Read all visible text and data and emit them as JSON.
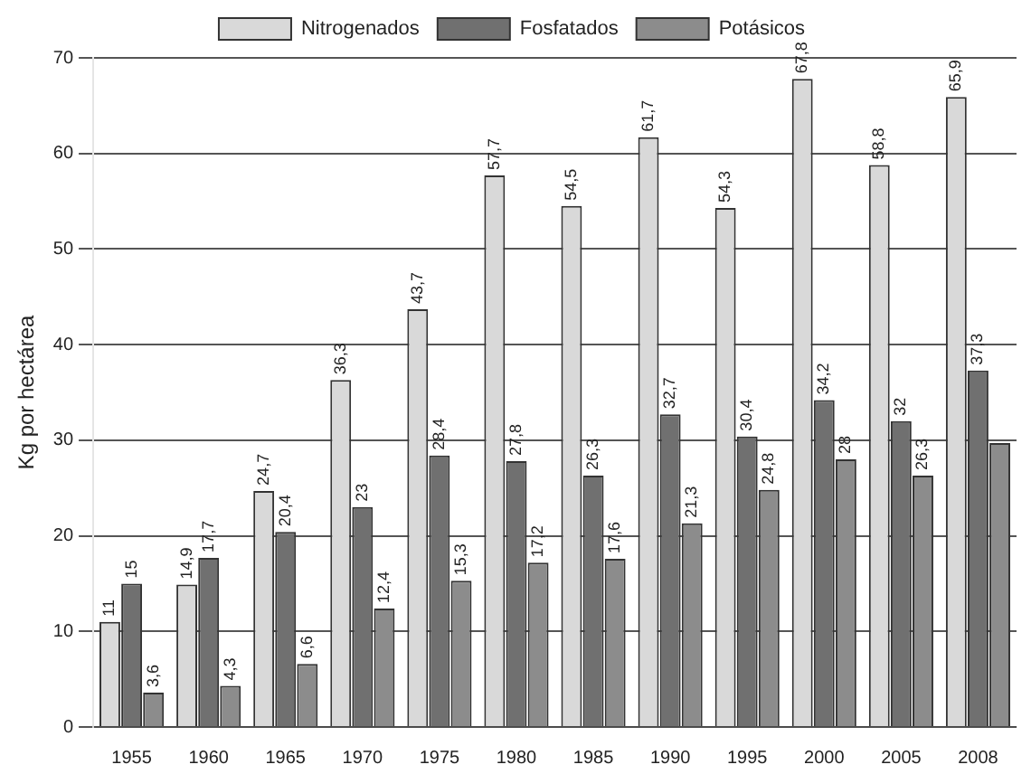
{
  "chart_data": {
    "type": "bar",
    "ylabel": "Kg por hectárea",
    "categories": [
      "1955",
      "1960",
      "1965",
      "1970",
      "1975",
      "1980",
      "1985",
      "1990",
      "1995",
      "2000",
      "2005",
      "2008"
    ],
    "series": [
      {
        "name": "Nitrogenados",
        "color": "#d9d9d9",
        "values": [
          11,
          14.9,
          24.7,
          36.3,
          43.7,
          57.7,
          54.5,
          61.7,
          54.3,
          67.8,
          58.8,
          65.9
        ],
        "value_labels": [
          "11",
          "14,9",
          "24,7",
          "36,3",
          "43,7",
          "57,7",
          "54,5",
          "61,7",
          "54,3",
          "67,8",
          "58,8",
          "65,9"
        ]
      },
      {
        "name": "Fosfatados",
        "color": "#707070",
        "values": [
          15,
          17.7,
          20.4,
          23,
          28.4,
          27.8,
          26.3,
          32.7,
          30.4,
          34.2,
          32,
          37.3
        ],
        "value_labels": [
          "15",
          "17,7",
          "20,4",
          "23",
          "28,4",
          "27,8",
          "26,3",
          "32,7",
          "30,4",
          "34,2",
          "32",
          "37,3"
        ]
      },
      {
        "name": "Potásicos",
        "color": "#8c8c8c",
        "values": [
          3.6,
          4.3,
          6.6,
          12.4,
          15.3,
          17.2,
          17.6,
          21.3,
          24.8,
          28,
          26.3,
          29.7
        ],
        "value_labels": [
          "3,6",
          "4,3",
          "6,6",
          "12,4",
          "15,3",
          "17,2",
          "17,6",
          "21,3",
          "24,8",
          "28",
          "26,3",
          null
        ]
      }
    ],
    "ylim": [
      0,
      70
    ],
    "yticks": [
      0,
      10,
      20,
      30,
      40,
      50,
      60,
      70
    ],
    "grid": "y",
    "legend": "top"
  }
}
